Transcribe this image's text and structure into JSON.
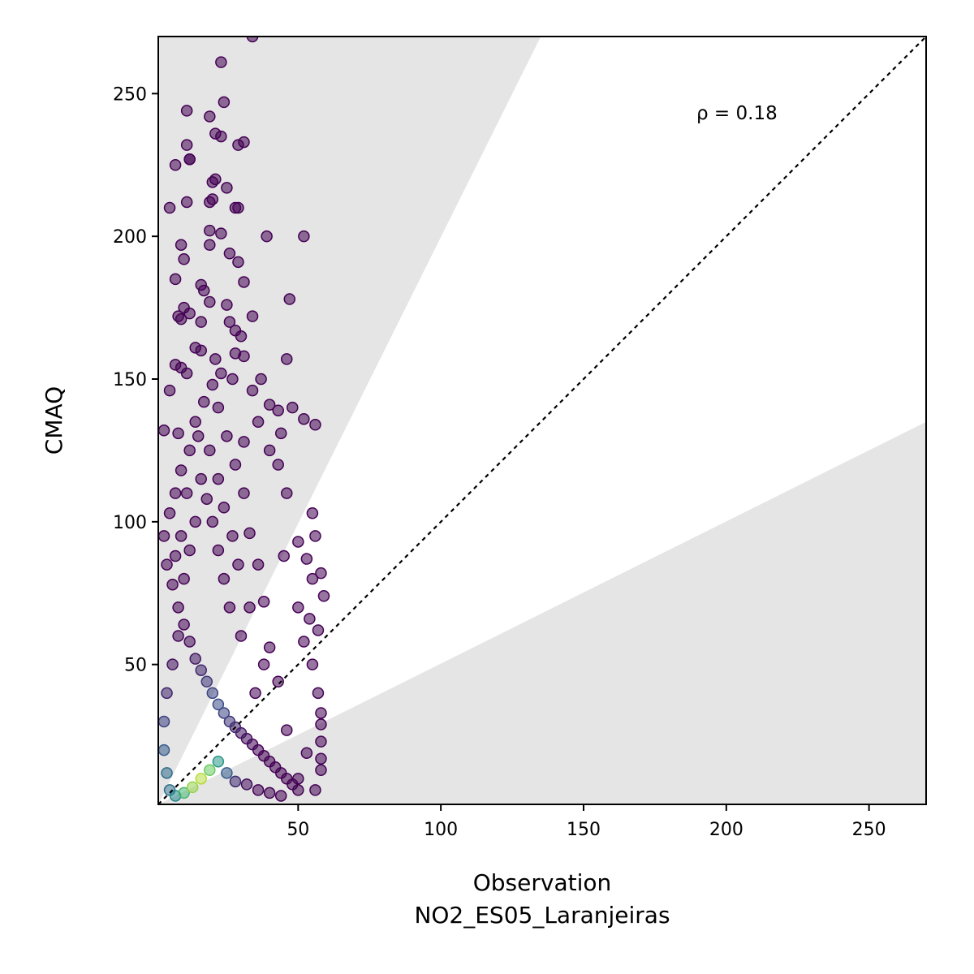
{
  "chart_data": {
    "type": "scatter",
    "xlabel": "Observation",
    "xlabel2": "NO2_ES05_Laranjeiras",
    "ylabel": "CMAQ",
    "xlim": [
      1,
      270
    ],
    "ylim": [
      1,
      270
    ],
    "xticks": [
      50,
      100,
      150,
      200,
      250
    ],
    "yticks": [
      50,
      100,
      150,
      200,
      250
    ],
    "annotation": "ρ = 0.18",
    "one_to_one_line": true,
    "factor_of_two_band": true,
    "grid": false,
    "colormap": "viridis (point density)",
    "colors": {
      "band": "#e5e5e5",
      "low_density": "#440154",
      "high_density": "#fde725"
    },
    "series": [
      {
        "points": [
          [
            34,
            270
          ],
          [
            23,
            261
          ],
          [
            24,
            247
          ],
          [
            11,
            244
          ],
          [
            19,
            242
          ],
          [
            21,
            236
          ],
          [
            23,
            235
          ],
          [
            29,
            232
          ],
          [
            31,
            233
          ],
          [
            11,
            232
          ],
          [
            12,
            227
          ],
          [
            12,
            227
          ],
          [
            7,
            225
          ],
          [
            21,
            220
          ],
          [
            20,
            219
          ],
          [
            25,
            217
          ],
          [
            20,
            213
          ],
          [
            11,
            212
          ],
          [
            19,
            212
          ],
          [
            5,
            210
          ],
          [
            28,
            210
          ],
          [
            29,
            210
          ],
          [
            39,
            200
          ],
          [
            52,
            200
          ],
          [
            19,
            202
          ],
          [
            23,
            201
          ],
          [
            9,
            197
          ],
          [
            19,
            197
          ],
          [
            10,
            192
          ],
          [
            26,
            194
          ],
          [
            29,
            191
          ],
          [
            7,
            185
          ],
          [
            31,
            184
          ],
          [
            16,
            183
          ],
          [
            17,
            181
          ],
          [
            19,
            177
          ],
          [
            25,
            176
          ],
          [
            47,
            178
          ],
          [
            10,
            175
          ],
          [
            12,
            173
          ],
          [
            8,
            172
          ],
          [
            9,
            171
          ],
          [
            16,
            170
          ],
          [
            26,
            170
          ],
          [
            34,
            172
          ],
          [
            28,
            167
          ],
          [
            30,
            165
          ],
          [
            14,
            161
          ],
          [
            16,
            160
          ],
          [
            21,
            157
          ],
          [
            46,
            157
          ],
          [
            28,
            159
          ],
          [
            31,
            158
          ],
          [
            7,
            155
          ],
          [
            9,
            154
          ],
          [
            11,
            152
          ],
          [
            23,
            152
          ],
          [
            27,
            150
          ],
          [
            5,
            146
          ],
          [
            37,
            150
          ],
          [
            34,
            146
          ],
          [
            40,
            141
          ],
          [
            43,
            139
          ],
          [
            48,
            140
          ],
          [
            52,
            136
          ],
          [
            56,
            134
          ],
          [
            44,
            131
          ],
          [
            36,
            135
          ],
          [
            3,
            132
          ],
          [
            8,
            131
          ],
          [
            31,
            128
          ],
          [
            40,
            125
          ],
          [
            43,
            120
          ],
          [
            46,
            110
          ],
          [
            55,
            103
          ],
          [
            56,
            95
          ],
          [
            50,
            93
          ],
          [
            45,
            88
          ],
          [
            53,
            87
          ],
          [
            55,
            80
          ],
          [
            58,
            82
          ],
          [
            59,
            74
          ],
          [
            50,
            70
          ],
          [
            54,
            66
          ],
          [
            57,
            62
          ],
          [
            52,
            58
          ],
          [
            55,
            50
          ],
          [
            57,
            40
          ],
          [
            58,
            33
          ],
          [
            58,
            29
          ],
          [
            58,
            23
          ],
          [
            58,
            17
          ],
          [
            58,
            13
          ],
          [
            56,
            6
          ],
          [
            50,
            10
          ],
          [
            53,
            19
          ],
          [
            46,
            27
          ],
          [
            43,
            44
          ],
          [
            40,
            56
          ],
          [
            38,
            72
          ],
          [
            36,
            85
          ],
          [
            33,
            96
          ],
          [
            31,
            110
          ],
          [
            28,
            120
          ],
          [
            25,
            130
          ],
          [
            22,
            140
          ],
          [
            20,
            148
          ],
          [
            17,
            142
          ],
          [
            14,
            135
          ],
          [
            12,
            125
          ],
          [
            9,
            118
          ],
          [
            7,
            110
          ],
          [
            5,
            103
          ],
          [
            3,
            95
          ],
          [
            4,
            85
          ],
          [
            6,
            78
          ],
          [
            8,
            70
          ],
          [
            10,
            64
          ],
          [
            12,
            58
          ],
          [
            14,
            52
          ],
          [
            16,
            48
          ],
          [
            18,
            44
          ],
          [
            20,
            40
          ],
          [
            22,
            36
          ],
          [
            24,
            33
          ],
          [
            26,
            30
          ],
          [
            28,
            28
          ],
          [
            30,
            26
          ],
          [
            32,
            24
          ],
          [
            34,
            22
          ],
          [
            36,
            20
          ],
          [
            38,
            18
          ],
          [
            40,
            16
          ],
          [
            42,
            14
          ],
          [
            44,
            12
          ],
          [
            46,
            10
          ],
          [
            48,
            8
          ],
          [
            50,
            6
          ],
          [
            30,
            60
          ],
          [
            26,
            70
          ],
          [
            24,
            80
          ],
          [
            22,
            90
          ],
          [
            20,
            100
          ],
          [
            18,
            108
          ],
          [
            16,
            115
          ],
          [
            14,
            100
          ],
          [
            12,
            90
          ],
          [
            10,
            80
          ],
          [
            8,
            60
          ],
          [
            6,
            50
          ],
          [
            4,
            40
          ],
          [
            3,
            30
          ],
          [
            3,
            20
          ],
          [
            4,
            12
          ],
          [
            5,
            6
          ],
          [
            7,
            4
          ],
          [
            10,
            5
          ],
          [
            13,
            7
          ],
          [
            16,
            10
          ],
          [
            19,
            13
          ],
          [
            22,
            16
          ],
          [
            25,
            12
          ],
          [
            28,
            9
          ],
          [
            32,
            8
          ],
          [
            36,
            6
          ],
          [
            40,
            5
          ],
          [
            44,
            4
          ],
          [
            35,
            40
          ],
          [
            38,
            50
          ],
          [
            33,
            70
          ],
          [
            29,
            85
          ],
          [
            27,
            95
          ],
          [
            24,
            105
          ],
          [
            22,
            115
          ],
          [
            19,
            125
          ],
          [
            15,
            130
          ],
          [
            11,
            110
          ],
          [
            9,
            95
          ],
          [
            7,
            88
          ]
        ]
      }
    ]
  }
}
